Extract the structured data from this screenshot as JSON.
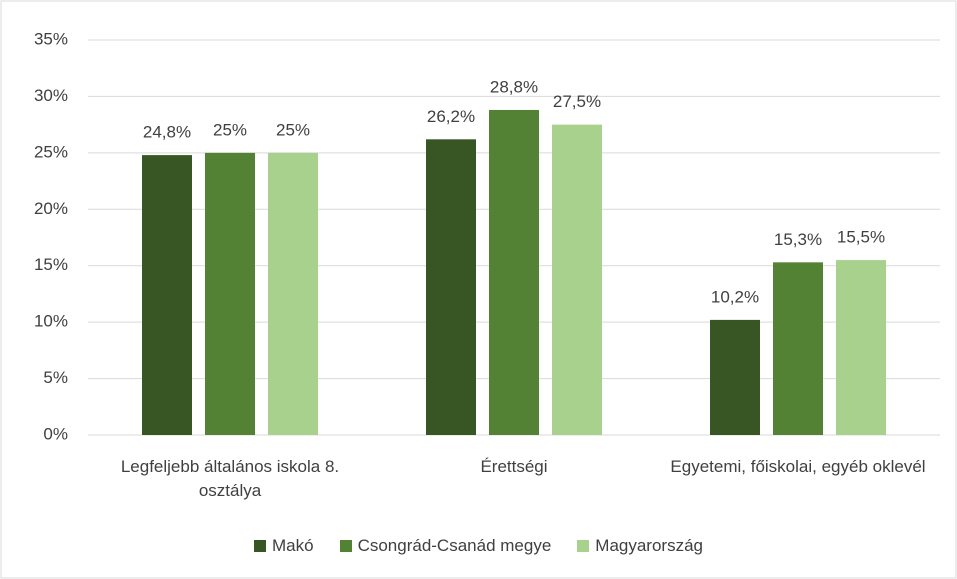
{
  "chart_data": {
    "type": "bar",
    "categories": [
      "Legfeljebb általános iskola 8. osztálya",
      "Érettségi",
      "Egyetemi, főiskolai, egyéb oklevél"
    ],
    "series": [
      {
        "name": "Makó",
        "color": "#375623",
        "values": [
          24.8,
          26.2,
          10.2
        ],
        "value_labels": [
          "24,8%",
          "26,2%",
          "10,2%"
        ]
      },
      {
        "name": "Csongrád-Csanád megye",
        "color": "#548235",
        "values": [
          25,
          28.8,
          15.3
        ],
        "value_labels": [
          "25%",
          "28,8%",
          "15,3%"
        ]
      },
      {
        "name": "Magyarország",
        "color": "#a9d18e",
        "values": [
          25,
          27.5,
          15.5
        ],
        "value_labels": [
          "25%",
          "27,5%",
          "15,5%"
        ]
      }
    ],
    "ylim": [
      0,
      35
    ],
    "yticks": [
      {
        "value": 0,
        "label": "0%"
      },
      {
        "value": 5,
        "label": "5%"
      },
      {
        "value": 10,
        "label": "10%"
      },
      {
        "value": 15,
        "label": "15%"
      },
      {
        "value": 20,
        "label": "20%"
      },
      {
        "value": 25,
        "label": "25%"
      },
      {
        "value": 30,
        "label": "30%"
      },
      {
        "value": 35,
        "label": "35%"
      }
    ],
    "grid": true,
    "legend": "bottom"
  }
}
